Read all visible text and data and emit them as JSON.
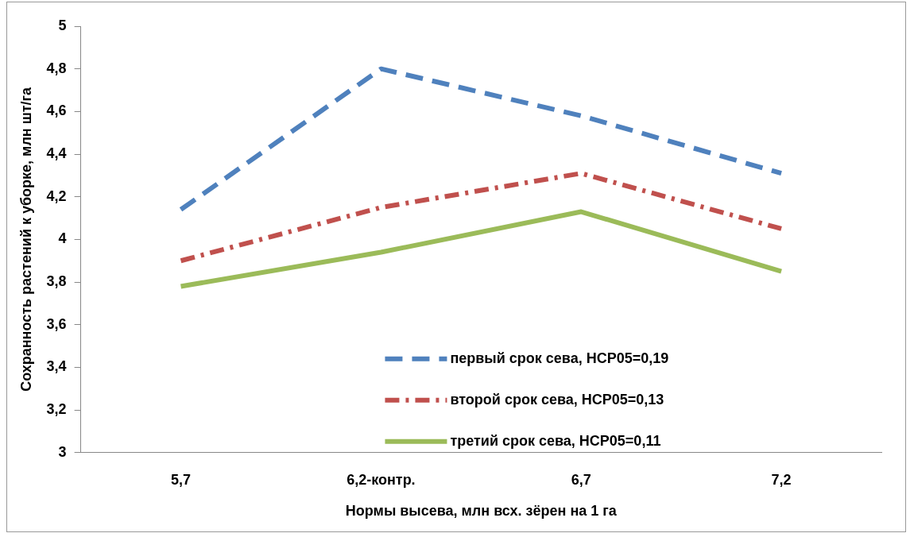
{
  "chart_data": {
    "type": "line",
    "xlabel": "Нормы высева, млн всх. зёрен на 1 га",
    "ylabel": "Сохранность растений к уборке, млн шт/га",
    "categories": [
      "5,7",
      "6,2-контр.",
      "6,7",
      "7,2"
    ],
    "ylim": [
      3,
      5
    ],
    "yticks": [
      {
        "value": 3,
        "label": "3"
      },
      {
        "value": 3.2,
        "label": "3,2"
      },
      {
        "value": 3.4,
        "label": "3,4"
      },
      {
        "value": 3.6,
        "label": "3,6"
      },
      {
        "value": 3.8,
        "label": "3,8"
      },
      {
        "value": 4,
        "label": "4"
      },
      {
        "value": 4.2,
        "label": "4,2"
      },
      {
        "value": 4.4,
        "label": "4,4"
      },
      {
        "value": 4.6,
        "label": "4,6"
      },
      {
        "value": 4.8,
        "label": "4,8"
      },
      {
        "value": 5,
        "label": "5"
      }
    ],
    "grid": false,
    "legend": "bottom",
    "marker": "none",
    "series": [
      {
        "name": "первый срок сева, НСР05=0,19",
        "color": "#4f81bd",
        "line_style": "dashed",
        "values": [
          4.14,
          4.8,
          4.58,
          4.31
        ]
      },
      {
        "name": "второй срок сева, НСР05=0,13",
        "color": "#c0504d",
        "line_style": "dashdot",
        "values": [
          3.9,
          4.15,
          4.31,
          4.05
        ]
      },
      {
        "name": "третий срок сева, НСР05=0,11",
        "color": "#9bbb59",
        "line_style": "solid",
        "values": [
          3.78,
          3.94,
          4.13,
          3.85
        ]
      }
    ]
  }
}
